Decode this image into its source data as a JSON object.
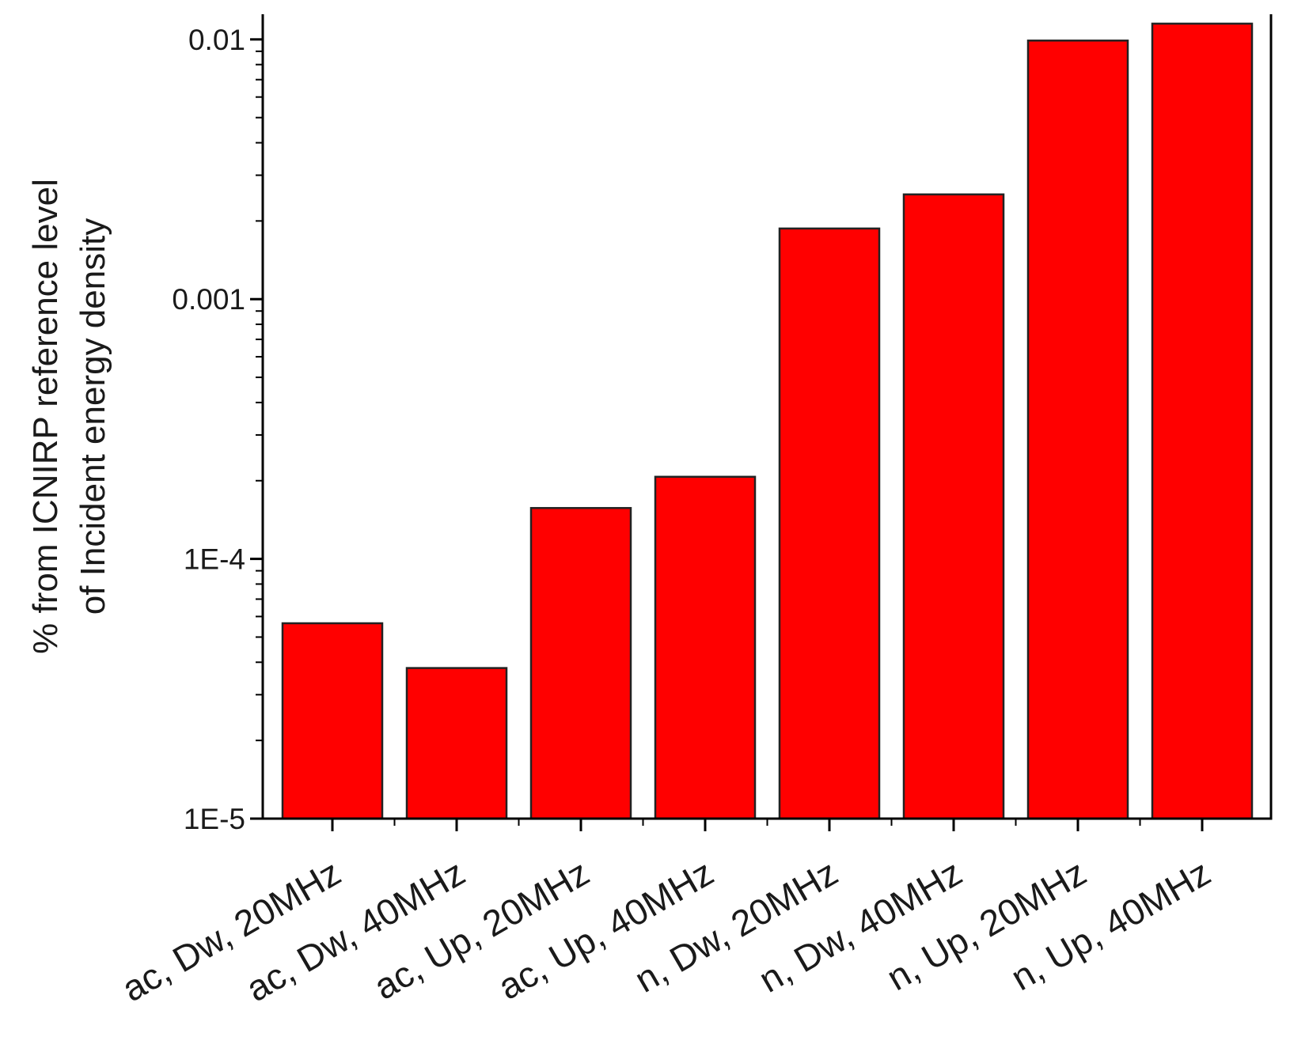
{
  "chart_data": {
    "type": "bar",
    "scale": {
      "y": "log"
    },
    "categories": [
      "ac, Dw, 20MHz",
      "ac, Dw, 40MHz",
      "ac, Up, 20MHz",
      "ac, Up, 40MHz",
      "n, Dw, 20MHz",
      "n, Dw, 40MHz",
      "n, Up, 20MHz",
      "n, Up, 40MHz"
    ],
    "values": [
      5.65e-05,
      3.8e-05,
      0.000157,
      0.000207,
      0.00187,
      0.00253,
      0.0099,
      0.0115
    ],
    "ylim": [
      1e-05,
      0.0125
    ],
    "yticks": [
      1e-05,
      0.0001,
      0.001,
      0.01
    ],
    "ytick_labels": [
      "1E-5",
      "1E-4",
      "0.001",
      "0.01"
    ],
    "ylabel_lines": [
      "% from ICNIRP reference level",
      "of Incident energy density"
    ],
    "xlabel": "",
    "title": "",
    "bar_color": "#ff0000",
    "grid": false,
    "legend": "none"
  }
}
